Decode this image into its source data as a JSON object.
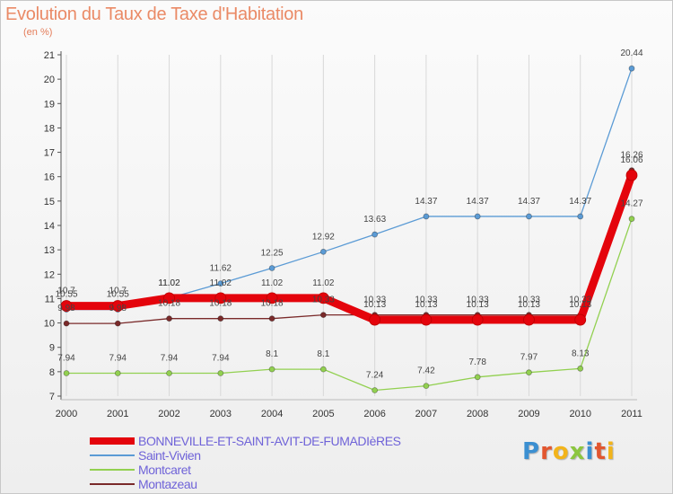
{
  "title": "Evolution du Taux de Taxe d'Habitation",
  "unit_label": "(en %)",
  "logo": {
    "text": "Proxiti",
    "letters": [
      {
        "ch": "P",
        "color": "#3b8fd1"
      },
      {
        "ch": "r",
        "color": "#e2562f"
      },
      {
        "ch": "o",
        "color": "#f2b41b"
      },
      {
        "ch": "x",
        "color": "#8cc63f"
      },
      {
        "ch": "i",
        "color": "#3b8fd1"
      },
      {
        "ch": "t",
        "color": "#e2562f"
      },
      {
        "ch": "i",
        "color": "#f2b41b"
      }
    ]
  },
  "chart_data": {
    "type": "line",
    "title": "Evolution du Taux de Taxe d'Habitation",
    "ylabel": "(en %)",
    "x": [
      "2000",
      "2001",
      "2002",
      "2003",
      "2004",
      "2005",
      "2006",
      "2007",
      "2008",
      "2009",
      "2010",
      "2011"
    ],
    "ylim": [
      7,
      21
    ],
    "yticks": [
      7,
      8,
      9,
      10,
      11,
      12,
      13,
      14,
      15,
      16,
      17,
      18,
      19,
      20,
      21
    ],
    "grid": "vertical",
    "legend_position": "bottom-left",
    "series": [
      {
        "name": "BONNEVILLE-ET-SAINT-AVIT-DE-FUMADIèRES",
        "color": "#e4040c",
        "values": [
          10.7,
          10.7,
          11.02,
          11.02,
          11.02,
          11.02,
          10.13,
          10.13,
          10.13,
          10.13,
          10.13,
          16.06
        ],
        "labels": [
          "10.7",
          "10.7",
          "11.02",
          "11.02",
          "11.02",
          "11.02",
          "10.13",
          "10.13",
          "10.13",
          "10.13",
          "10.13",
          "16.06"
        ]
      },
      {
        "name": "Saint-Vivien",
        "color": "#5b9bd5",
        "values": [
          10.55,
          10.55,
          11.02,
          11.62,
          12.25,
          12.92,
          13.63,
          14.37,
          14.37,
          14.37,
          14.37,
          20.44
        ],
        "labels": [
          "10.55",
          "10.55",
          "11.02",
          "11.62",
          "12.25",
          "12.92",
          "13.63",
          "14.37",
          "14.37",
          "14.37",
          "14.37",
          "20.44"
        ]
      },
      {
        "name": "Montcaret",
        "color": "#92d050",
        "values": [
          7.94,
          7.94,
          7.94,
          7.94,
          8.1,
          8.1,
          7.24,
          7.42,
          7.78,
          7.97,
          8.13,
          14.27
        ],
        "labels": [
          "7.94",
          "7.94",
          "7.94",
          "7.94",
          "8.1",
          "8.1",
          "7.24",
          "7.42",
          "7.78",
          "7.97",
          "8.13",
          "14.27"
        ]
      },
      {
        "name": "Montazeau",
        "color": "#7a2a2a",
        "values": [
          9.98,
          9.98,
          10.18,
          10.18,
          10.18,
          10.33,
          10.33,
          10.33,
          10.33,
          10.33,
          10.33,
          16.26
        ],
        "labels": [
          "9.98",
          "9.98",
          "10.18",
          "10.18",
          "10.18",
          "10.33",
          "10.33",
          "10.33",
          "10.33",
          "10.33",
          "10.33",
          "16.26"
        ]
      }
    ]
  }
}
